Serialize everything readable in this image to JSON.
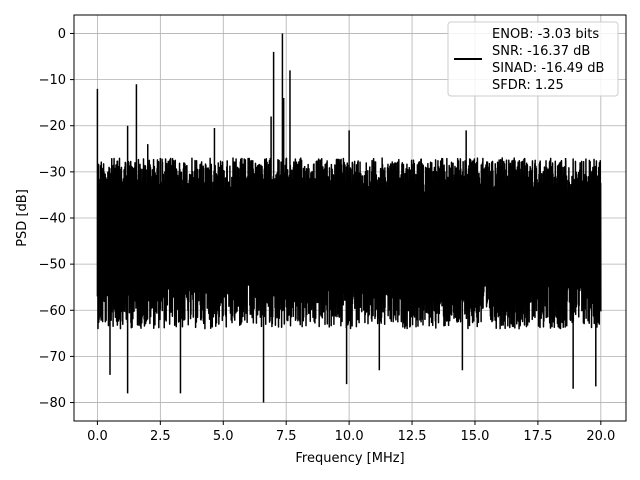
{
  "chart_data": {
    "type": "line",
    "title": "",
    "xlabel": "Frequency [MHz]",
    "ylabel": "PSD [dB]",
    "xlim": [
      -0.93,
      21.0
    ],
    "ylim": [
      -84,
      4
    ],
    "xticks": [
      0.0,
      2.5,
      5.0,
      7.5,
      10.0,
      12.5,
      15.0,
      17.5,
      20.0
    ],
    "xtick_labels": [
      "0.0",
      "2.5",
      "5.0",
      "7.5",
      "10.0",
      "12.5",
      "15.0",
      "17.5",
      "20.0"
    ],
    "yticks": [
      0,
      -10,
      -20,
      -30,
      -40,
      -50,
      -60,
      -70,
      -80
    ],
    "ytick_labels": [
      "0",
      "−10",
      "−20",
      "−30",
      "−40",
      "−50",
      "−60",
      "−70",
      "−80"
    ],
    "grid": true,
    "legend_position": "top-right",
    "series": [
      {
        "color": "#000000",
        "x_range": [
          0.0,
          20.0
        ],
        "noise_floor_top": -27,
        "noise_floor_bottom": -62,
        "spurs": [
          {
            "x": 0.0,
            "y": -12
          },
          {
            "x": 1.2,
            "y": -20
          },
          {
            "x": 1.55,
            "y": -11
          },
          {
            "x": 2.0,
            "y": -24
          },
          {
            "x": 2.5,
            "y": -27
          },
          {
            "x": 4.65,
            "y": -20.5
          },
          {
            "x": 6.9,
            "y": -18
          },
          {
            "x": 7.0,
            "y": -4
          },
          {
            "x": 7.35,
            "y": 0
          },
          {
            "x": 7.4,
            "y": -14
          },
          {
            "x": 7.65,
            "y": -8
          },
          {
            "x": 10.0,
            "y": -21
          },
          {
            "x": 14.65,
            "y": -21
          },
          {
            "x": 18.6,
            "y": -27
          }
        ],
        "dips": [
          {
            "x": 0.5,
            "y": -74
          },
          {
            "x": 1.2,
            "y": -78
          },
          {
            "x": 3.3,
            "y": -78
          },
          {
            "x": 6.6,
            "y": -80
          },
          {
            "x": 9.9,
            "y": -76
          },
          {
            "x": 11.2,
            "y": -73
          },
          {
            "x": 14.5,
            "y": -73
          },
          {
            "x": 18.9,
            "y": -77
          },
          {
            "x": 19.8,
            "y": -76.5
          }
        ]
      }
    ],
    "legend_lines": [
      "ENOB: -3.03 bits",
      "SNR: -16.37 dB",
      "SINAD: -16.49 dB",
      "SFDR: 1.25"
    ]
  }
}
